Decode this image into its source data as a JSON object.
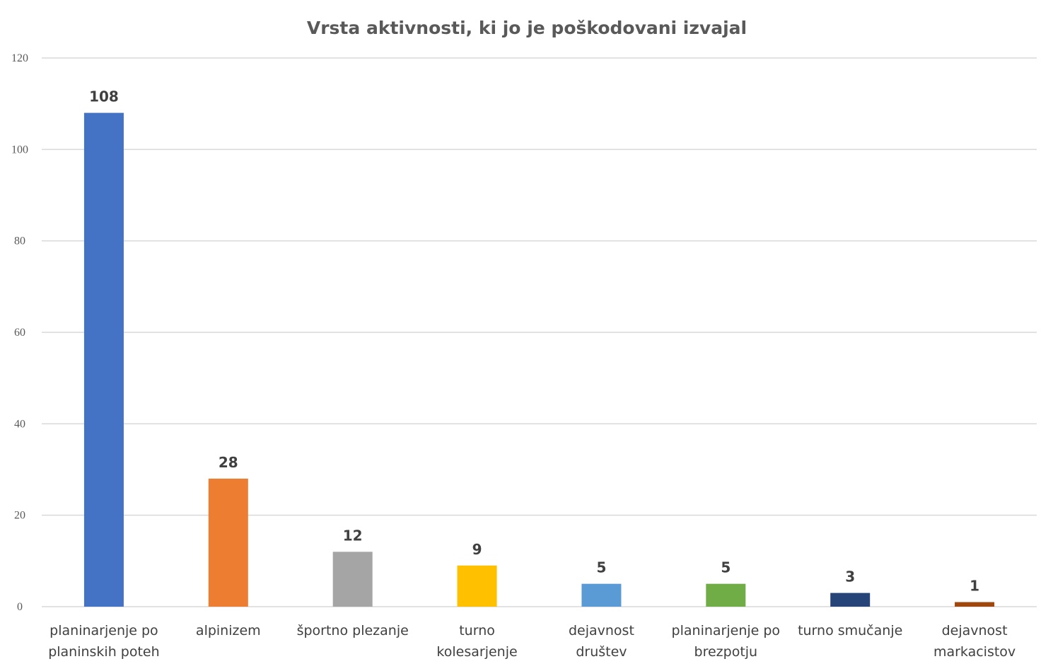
{
  "chart_data": {
    "type": "bar",
    "title": "Vrsta aktivnosti, ki jo je poškodovani izvajal",
    "xlabel": "",
    "ylabel": "",
    "ylim": [
      0,
      120
    ],
    "yticks": [
      0,
      20,
      40,
      60,
      80,
      100,
      120
    ],
    "grid": true,
    "legend": "none",
    "categories": [
      [
        "planinarjenje po",
        "planinskih poteh"
      ],
      [
        "alpinizem"
      ],
      [
        "športno plezanje"
      ],
      [
        "turno",
        "kolesarjenje"
      ],
      [
        "dejavnost",
        "društev"
      ],
      [
        "planinarjenje po",
        "brezpotju"
      ],
      [
        "turno smučanje"
      ],
      [
        "dejavnost",
        "markacistov"
      ]
    ],
    "values": [
      108,
      28,
      12,
      9,
      5,
      5,
      3,
      1
    ],
    "colors": [
      "#4472C4",
      "#ED7D31",
      "#A5A5A5",
      "#FFC000",
      "#5B9BD5",
      "#70AD47",
      "#264478",
      "#9E480E"
    ]
  }
}
